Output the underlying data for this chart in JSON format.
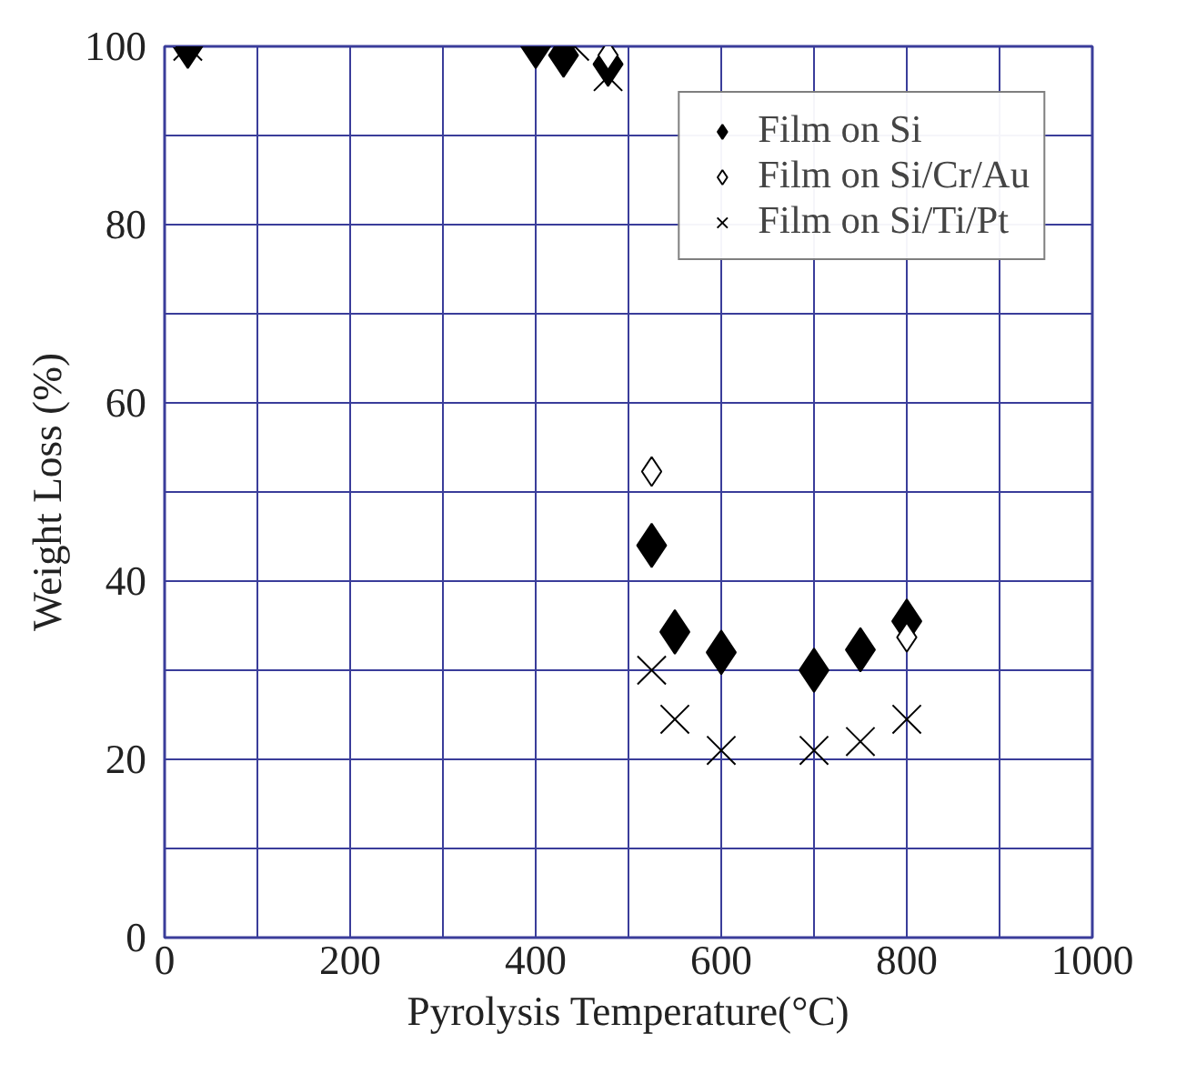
{
  "chart_data": {
    "type": "scatter",
    "xlabel": "Pyrolysis Temperature(°C)",
    "ylabel": "Weight Loss (%)",
    "xlim": [
      0,
      1000
    ],
    "ylim": [
      0,
      100
    ],
    "xticks": [
      0,
      {
        "value": 100,
        "label": null
      },
      200,
      {
        "value": 300,
        "label": null
      },
      400,
      {
        "value": 500,
        "label": null
      },
      600,
      {
        "value": 700,
        "label": null
      },
      800,
      {
        "value": 900,
        "label": null
      },
      1000
    ],
    "yticks": [
      0,
      {
        "value": 10,
        "label": null
      },
      20,
      {
        "value": 30,
        "label": null
      },
      40,
      {
        "value": 50,
        "label": null
      },
      60,
      {
        "value": 70,
        "label": null
      },
      80,
      {
        "value": 90,
        "label": null
      },
      100
    ],
    "grid": true,
    "legend": "top right",
    "series": [
      {
        "name": "Film on Si",
        "color": "#000000",
        "marker": "diamond",
        "x": [
          25,
          400,
          430,
          478,
          525,
          550,
          600,
          700,
          750,
          800
        ],
        "values": [
          100,
          100,
          99,
          98,
          44,
          34.3,
          32,
          30,
          32.3,
          35.5
        ]
      },
      {
        "name": "Film on Si/Cr/Au",
        "color": "#000000",
        "marker": "diamond_open",
        "x": [
          478,
          525,
          800
        ],
        "values": [
          99,
          52.3,
          33.7
        ]
      },
      {
        "name": "Film on Si/Ti/Pt",
        "color": "#000000",
        "marker": "cross",
        "x": [
          25,
          442,
          478,
          525,
          550,
          600,
          700,
          750,
          800
        ],
        "values": [
          100,
          100,
          96.6,
          30,
          24.5,
          21,
          21,
          22,
          24.5
        ]
      }
    ]
  }
}
